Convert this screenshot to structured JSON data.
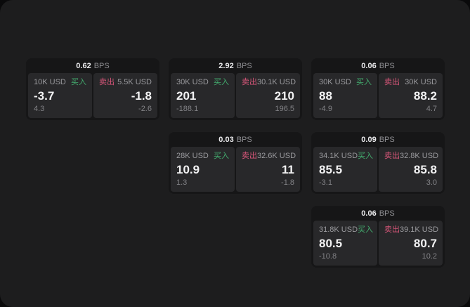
{
  "labels": {
    "bps_unit": "BPS",
    "buy": "买入",
    "sell": "卖出"
  },
  "colors": {
    "buy": "#43ac6e",
    "sell": "#d75679",
    "panel_bg": "#1d1d1e",
    "card_bg": "#161617",
    "cell_bg": "#28282a"
  },
  "cards": [
    {
      "row": 1,
      "col": 1,
      "bps": "0.62",
      "buy": {
        "amount": "10K USD",
        "value": "-3.7",
        "delta": "4.3"
      },
      "sell": {
        "amount": "5.5K USD",
        "value": "-1.8",
        "delta": "-2.6"
      }
    },
    {
      "row": 1,
      "col": 2,
      "bps": "2.92",
      "buy": {
        "amount": "30K USD",
        "value": "201",
        "delta": "-188.1"
      },
      "sell": {
        "amount": "30.1K USD",
        "value": "210",
        "delta": "196.5"
      }
    },
    {
      "row": 1,
      "col": 3,
      "bps": "0.06",
      "buy": {
        "amount": "30K USD",
        "value": "88",
        "delta": "-4.9"
      },
      "sell": {
        "amount": "30K USD",
        "value": "88.2",
        "delta": "4.7"
      }
    },
    {
      "row": 2,
      "col": 2,
      "bps": "0.03",
      "buy": {
        "amount": "28K USD",
        "value": "10.9",
        "delta": "1.3"
      },
      "sell": {
        "amount": "32.6K USD",
        "value": "11",
        "delta": "-1.8"
      }
    },
    {
      "row": 2,
      "col": 3,
      "bps": "0.09",
      "buy": {
        "amount": "34.1K USD",
        "value": "85.5",
        "delta": "-3.1"
      },
      "sell": {
        "amount": "32.8K USD",
        "value": "85.8",
        "delta": "3.0"
      }
    },
    {
      "row": 3,
      "col": 3,
      "bps": "0.06",
      "buy": {
        "amount": "31.8K USD",
        "value": "80.5",
        "delta": "-10.8"
      },
      "sell": {
        "amount": "39.1K USD",
        "value": "80.7",
        "delta": "10.2"
      }
    }
  ]
}
